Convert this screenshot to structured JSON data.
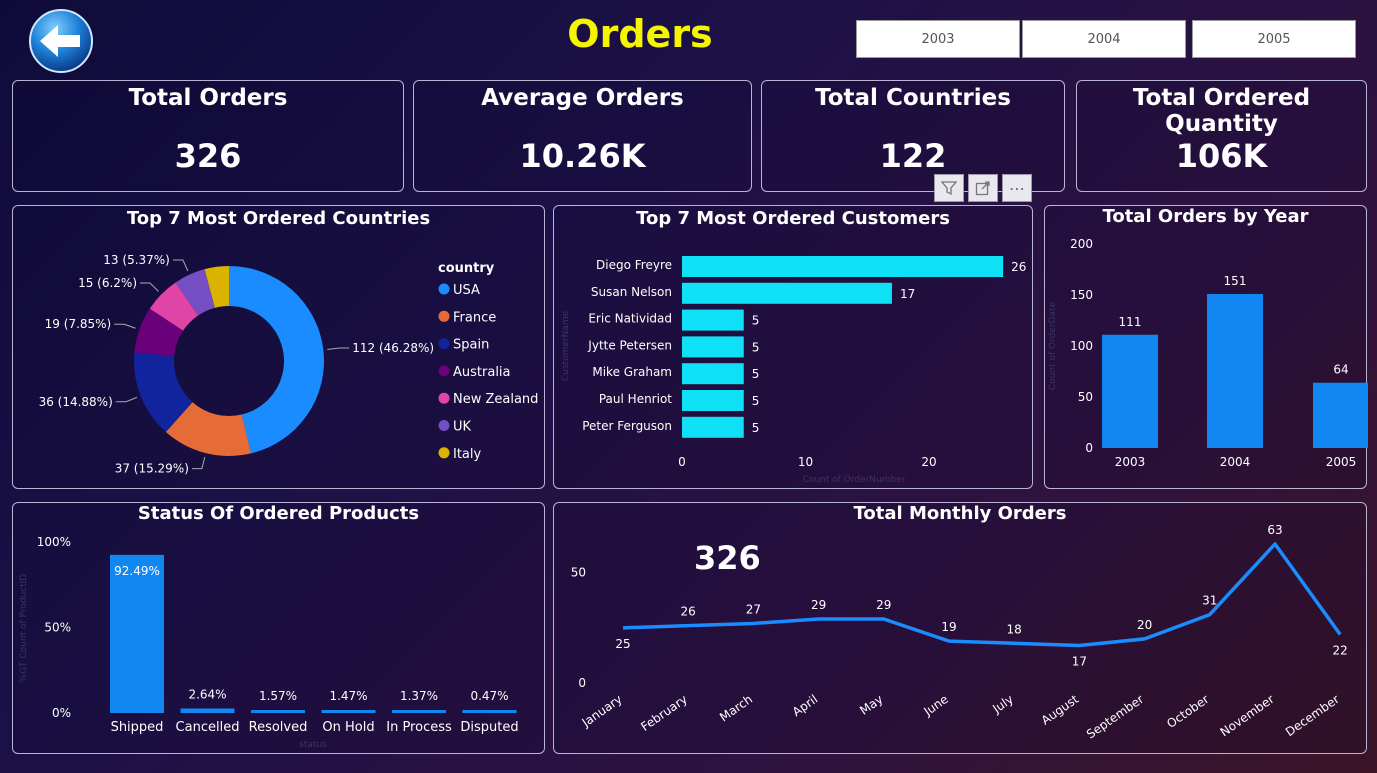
{
  "page_title": "Orders",
  "year_filters": [
    "2003",
    "2004",
    "2005"
  ],
  "kpis": [
    {
      "title": "Total Orders",
      "value": "326"
    },
    {
      "title": "Average Orders",
      "value": "10.26K"
    },
    {
      "title": "Total Countries",
      "value": "122"
    },
    {
      "title": "Total Ordered Quantity",
      "value": "106K"
    }
  ],
  "toolbar": {
    "more_label": "⋯"
  },
  "colors": {
    "accent": "#1187f2",
    "cyan": "#0fe0f5",
    "title_yellow": "#f5f500"
  },
  "chart_data": [
    {
      "type": "pie",
      "title": "Top 7 Most Ordered Countries",
      "legend_title": "country",
      "legend_position": "right",
      "slices": [
        {
          "name": "USA",
          "value": 112,
          "label": "112 (46.28%)",
          "color": "#1a8cff"
        },
        {
          "name": "France",
          "value": 37,
          "label": "37 (15.29%)",
          "color": "#e66c37"
        },
        {
          "name": "Spain",
          "value": 36,
          "label": "36 (14.88%)",
          "color": "#12239e"
        },
        {
          "name": "Australia",
          "value": 19,
          "label": "19 (7.85%)",
          "color": "#6b007b"
        },
        {
          "name": "New Zealand",
          "value": 15,
          "label": "15 (6.2%)",
          "color": "#e044a7"
        },
        {
          "name": "UK",
          "value": 13,
          "label": "13 (5.37%)",
          "color": "#744ec2"
        },
        {
          "name": "Italy",
          "value": 10,
          "label": "",
          "color": "#d9b300"
        }
      ]
    },
    {
      "type": "bar",
      "orientation": "horizontal",
      "title": "Top 7 Most Ordered Customers",
      "ylabel": "CustomerName",
      "xlabel": "Count of OrderNumber",
      "categories": [
        "Diego Freyre",
        "Susan Nelson",
        "Eric Natividad",
        "Jytte Petersen",
        "Mike Graham",
        "Paul Henriot",
        "Peter Ferguson"
      ],
      "values": [
        26,
        17,
        5,
        5,
        5,
        5,
        5
      ],
      "xticks": [
        "0",
        "10",
        "20"
      ],
      "xlim": [
        0,
        26
      ],
      "color": "#0fe0f5"
    },
    {
      "type": "bar",
      "title": "Total Orders by Year",
      "ylabel": "Count of OrderDate",
      "categories": [
        "2003",
        "2004",
        "2005"
      ],
      "values": [
        111,
        151,
        64
      ],
      "yticks": [
        "0",
        "50",
        "100",
        "150",
        "200"
      ],
      "ylim": [
        0,
        200
      ],
      "color": "#1187f2"
    },
    {
      "type": "bar",
      "title": "Status Of Ordered Products",
      "ylabel": "%GT Count of ProductID",
      "xlabel": "status",
      "categories": [
        "Shipped",
        "Cancelled",
        "Resolved",
        "On Hold",
        "In Process",
        "Disputed"
      ],
      "values": [
        92.49,
        2.64,
        1.57,
        1.47,
        1.37,
        0.47
      ],
      "labels": [
        "92.49%",
        "2.64%",
        "1.57%",
        "1.47%",
        "1.37%",
        "0.47%"
      ],
      "yticks": [
        "0%",
        "50%",
        "100%"
      ],
      "ylim": [
        0,
        100
      ],
      "color": "#1187f2"
    },
    {
      "type": "line",
      "title": "Total Monthly Orders",
      "overlay_value": "326",
      "x": [
        "January",
        "February",
        "March",
        "April",
        "May",
        "June",
        "July",
        "August",
        "September",
        "October",
        "November",
        "December"
      ],
      "values": [
        25,
        26,
        27,
        29,
        29,
        19,
        18,
        17,
        20,
        31,
        63,
        22
      ],
      "yticks": [
        "0",
        "50"
      ],
      "ylim": [
        0,
        68
      ],
      "color": "#1a8cff"
    }
  ]
}
